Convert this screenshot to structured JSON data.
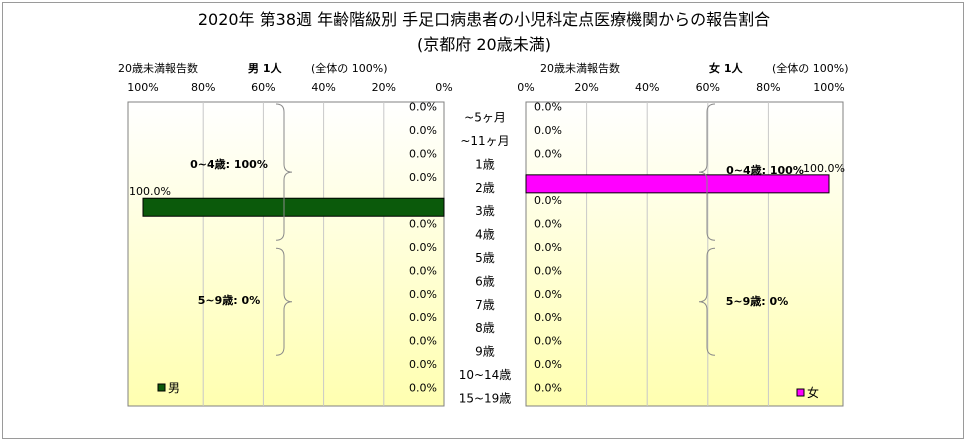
{
  "title_line1": "2020年 第38週 年齢階級別 手足口病患者の小児科定点医療機関からの報告割合",
  "title_line2": "(京都府 20歳未満)",
  "left_header": {
    "caption": "20歳未満報告数",
    "count": "男 1人",
    "note": "(全体の 100%)"
  },
  "right_header": {
    "caption": "20歳未満報告数",
    "count": "女 1人",
    "note": "(全体の 100%)"
  },
  "colors": {
    "male": "#0b5a0b",
    "female": "#ff00ff",
    "plot_bg_top": "#ffffff",
    "plot_bg_bottom": "#ffffb0"
  },
  "chart_data": [
    {
      "type": "bar",
      "orientation": "horizontal-reversed",
      "series": [
        {
          "name": "男",
          "values": [
            0,
            0,
            0,
            0,
            100,
            0,
            0,
            0,
            0,
            0,
            0,
            0,
            0
          ]
        }
      ],
      "categories": [
        "~5ヶ月",
        "~11ヶ月",
        "1歳",
        "2歳",
        "3歳",
        "4歳",
        "5歳",
        "6歳",
        "7歳",
        "8歳",
        "9歳",
        "10~14歳",
        "15~19歳"
      ],
      "value_labels": [
        "0.0%",
        "0.0%",
        "0.0%",
        "0.0%",
        "100.0%",
        "0.0%",
        "0.0%",
        "0.0%",
        "0.0%",
        "0.0%",
        "0.0%",
        "0.0%",
        "0.0%"
      ],
      "xticks": [
        "100%",
        "80%",
        "60%",
        "40%",
        "20%",
        "0%"
      ],
      "xlim": [
        0,
        100
      ],
      "groups": [
        {
          "label": "0~4歳: 100%"
        },
        {
          "label": "5~9歳: 0%"
        }
      ],
      "legend": "男",
      "legend_position": "bottom-left"
    },
    {
      "type": "bar",
      "orientation": "horizontal",
      "series": [
        {
          "name": "女",
          "values": [
            0,
            0,
            0,
            100,
            0,
            0,
            0,
            0,
            0,
            0,
            0,
            0,
            0
          ]
        }
      ],
      "categories": [
        "~5ヶ月",
        "~11ヶ月",
        "1歳",
        "2歳",
        "3歳",
        "4歳",
        "5歳",
        "6歳",
        "7歳",
        "8歳",
        "9歳",
        "10~14歳",
        "15~19歳"
      ],
      "value_labels": [
        "0.0%",
        "0.0%",
        "0.0%",
        "100.0%",
        "0.0%",
        "0.0%",
        "0.0%",
        "0.0%",
        "0.0%",
        "0.0%",
        "0.0%",
        "0.0%",
        "0.0%"
      ],
      "xticks": [
        "0%",
        "20%",
        "40%",
        "60%",
        "80%",
        "100%"
      ],
      "xlim": [
        0,
        100
      ],
      "groups": [
        {
          "label": "0~4歳: 100%"
        },
        {
          "label": "5~9歳: 0%"
        }
      ],
      "legend": "女",
      "legend_position": "bottom-right"
    }
  ]
}
